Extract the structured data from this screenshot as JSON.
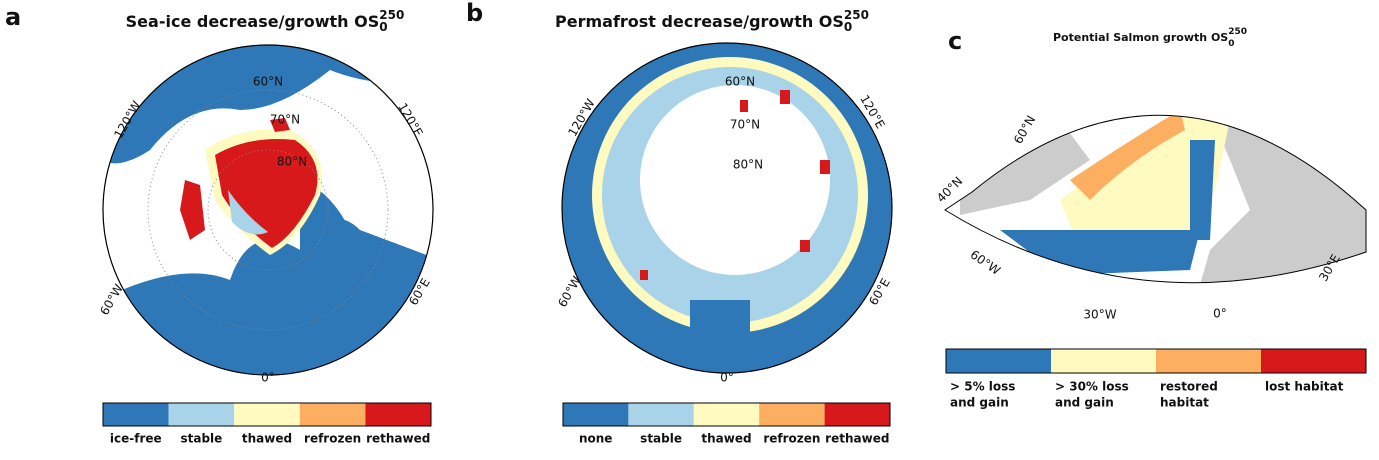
{
  "panels": [
    {
      "letter": "a",
      "title": "Sea-ice decrease/growth OS",
      "sup": "250",
      "sub": "0",
      "grid_labels": [
        "60°N",
        "70°N",
        "80°N",
        "120°W",
        "120°E",
        "60°W",
        "60°E",
        "0°"
      ],
      "legend": [
        {
          "label": "ice-free",
          "color": "#2e78b7"
        },
        {
          "label": "stable",
          "color": "#a8d3e8"
        },
        {
          "label": "thawed",
          "color": "#fefac0"
        },
        {
          "label": "refrozen",
          "color": "#fcae61"
        },
        {
          "label": "rethawed",
          "color": "#d7191c"
        }
      ]
    },
    {
      "letter": "b",
      "title": "Permafrost decrease/growth OS",
      "sup": "250",
      "sub": "0",
      "grid_labels": [
        "60°N",
        "70°N",
        "80°N",
        "120°W",
        "120°E",
        "60°W",
        "60°E",
        "0°"
      ],
      "legend": [
        {
          "label": "none",
          "color": "#2e78b7"
        },
        {
          "label": "stable",
          "color": "#a8d3e8"
        },
        {
          "label": "thawed",
          "color": "#fefac0"
        },
        {
          "label": "refrozen",
          "color": "#fcae61"
        },
        {
          "label": "rethawed",
          "color": "#d7191c"
        }
      ]
    },
    {
      "letter": "c",
      "title": "Potential Salmon growth OS",
      "sup": "250",
      "sub": "0",
      "grid_labels": [
        "60°N",
        "40°N",
        "60°W",
        "30°W",
        "0°",
        "30°E"
      ],
      "legend": [
        {
          "label": [
            "> 5% loss",
            "and gain"
          ],
          "color": "#2e78b7"
        },
        {
          "label": [
            "> 30% loss",
            "and gain"
          ],
          "color": "#fefac0"
        },
        {
          "label": [
            "restored",
            "habitat"
          ],
          "color": "#fcae61"
        },
        {
          "label": [
            "lost habitat"
          ],
          "color": "#d7191c"
        }
      ]
    }
  ]
}
